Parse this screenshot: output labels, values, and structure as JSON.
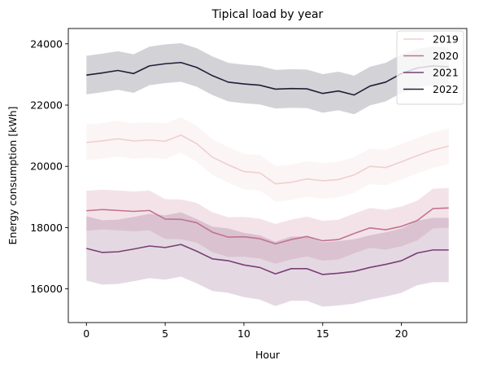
{
  "chart_data": {
    "type": "line",
    "title": "Tipical load by year",
    "xlabel": "Hour",
    "ylabel": "Energy consumption [kWh]",
    "xlim": [
      -1.15,
      24.15
    ],
    "ylim": [
      14900,
      24500
    ],
    "xticks": [
      0,
      5,
      10,
      15,
      20
    ],
    "yticks": [
      16000,
      18000,
      20000,
      22000,
      24000
    ],
    "grid": false,
    "legend_position": "top-right",
    "x": [
      0,
      1,
      2,
      3,
      4,
      5,
      6,
      7,
      8,
      9,
      10,
      11,
      12,
      13,
      14,
      15,
      16,
      17,
      18,
      19,
      20,
      21,
      22,
      23
    ],
    "series": [
      {
        "name": "2019",
        "color": "#efcfcd",
        "band_opacity": 0.2,
        "values": [
          20780,
          20830,
          20900,
          20830,
          20860,
          20820,
          21020,
          20740,
          20300,
          20050,
          19830,
          19790,
          19430,
          19480,
          19590,
          19530,
          19570,
          19720,
          20000,
          19960,
          20150,
          20350,
          20530,
          20660
        ],
        "lower": [
          20200,
          20250,
          20320,
          20250,
          20280,
          20240,
          20440,
          20160,
          19720,
          19470,
          19250,
          19210,
          18850,
          18900,
          19010,
          18950,
          18990,
          19140,
          19420,
          19380,
          19570,
          19770,
          19950,
          20080
        ],
        "upper": [
          21360,
          21410,
          21480,
          21410,
          21440,
          21400,
          21600,
          21320,
          20880,
          20630,
          20410,
          20370,
          20010,
          20060,
          20170,
          20110,
          20150,
          20300,
          20580,
          20540,
          20730,
          20930,
          21110,
          21240
        ]
      },
      {
        "name": "2020",
        "color": "#c2738f",
        "band_opacity": 0.2,
        "values": [
          18550,
          18590,
          18560,
          18530,
          18560,
          18280,
          18270,
          18160,
          17850,
          17690,
          17700,
          17640,
          17470,
          17610,
          17710,
          17570,
          17610,
          17810,
          17990,
          17930,
          18040,
          18230,
          18620,
          18640
        ],
        "lower": [
          17900,
          17940,
          17910,
          17880,
          17910,
          17630,
          17620,
          17510,
          17200,
          17040,
          17050,
          16990,
          16820,
          16960,
          17060,
          16920,
          16960,
          17160,
          17340,
          17280,
          17390,
          17580,
          17970,
          17990
        ],
        "upper": [
          19200,
          19240,
          19210,
          19180,
          19210,
          18930,
          18920,
          18810,
          18500,
          18340,
          18350,
          18290,
          18120,
          18260,
          18360,
          18220,
          18260,
          18460,
          18640,
          18580,
          18690,
          18880,
          19270,
          19290
        ]
      },
      {
        "name": "2021",
        "color": "#7a3f75",
        "band_opacity": 0.2,
        "values": [
          17320,
          17190,
          17210,
          17300,
          17400,
          17350,
          17450,
          17230,
          16980,
          16920,
          16780,
          16700,
          16490,
          16660,
          16660,
          16470,
          16510,
          16570,
          16700,
          16800,
          16920,
          17170,
          17270,
          17270
        ],
        "lower": [
          16270,
          16140,
          16160,
          16250,
          16350,
          16300,
          16400,
          16180,
          15930,
          15870,
          15730,
          15650,
          15440,
          15610,
          15610,
          15420,
          15460,
          15520,
          15650,
          15750,
          15870,
          16120,
          16220,
          16220
        ],
        "upper": [
          18370,
          18240,
          18260,
          18350,
          18450,
          18400,
          18500,
          18280,
          18030,
          17970,
          17830,
          17750,
          17540,
          17710,
          17710,
          17520,
          17560,
          17620,
          17750,
          17850,
          17970,
          18220,
          18320,
          18320
        ]
      },
      {
        "name": "2022",
        "color": "#231d39",
        "band_opacity": 0.2,
        "values": [
          22980,
          23050,
          23130,
          23030,
          23280,
          23350,
          23390,
          23230,
          22960,
          22750,
          22690,
          22650,
          22520,
          22540,
          22530,
          22380,
          22460,
          22330,
          22620,
          22750,
          23030,
          23210,
          23280,
          23250
        ],
        "lower": [
          22350,
          22420,
          22500,
          22400,
          22650,
          22720,
          22760,
          22600,
          22330,
          22120,
          22060,
          22020,
          21890,
          21910,
          21900,
          21750,
          21830,
          21700,
          21990,
          22120,
          22400,
          22580,
          22650,
          22620
        ],
        "upper": [
          23610,
          23680,
          23760,
          23660,
          23910,
          23980,
          24020,
          23860,
          23590,
          23380,
          23320,
          23280,
          23150,
          23170,
          23160,
          23010,
          23090,
          22960,
          23250,
          23380,
          23660,
          23840,
          23910,
          23880
        ]
      }
    ]
  }
}
